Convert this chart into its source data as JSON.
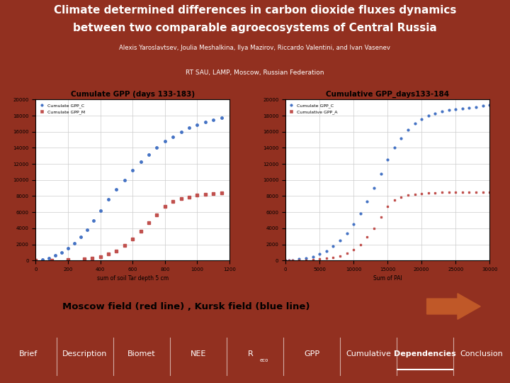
{
  "title_line1": "Climate determined differences in carbon dioxide fluxes dynamics",
  "title_line2": "between two comparable agroecosystems of Central Russia",
  "authors": "Alexis Yaroslavtsev, Joulia Meshalkina, Ilya Mazirov, Riccardo Valentini, and Ivan Vasenev",
  "affiliation": "RT SAU, LAMP, Moscow, Russian Federation",
  "header_bg": "#923020",
  "affil_bg": "#B84830",
  "body_bg": "#FFFFFF",
  "footer_bg": "#923020",
  "nav_items": [
    "Brief",
    "Description",
    "Biomet",
    "NEE",
    "R_eco",
    "GPP",
    "Cumulative",
    "Dependencies",
    "Conclusion"
  ],
  "active_nav": "Dependencies",
  "plot1_title": "Cumulate GPP (days 133-183)",
  "plot1_xlabel": "sum of soil Tar depth 5 cm",
  "plot1_legend1": "Cumulate GPP_C",
  "plot1_legend2": "Cumulate GPP_M",
  "plot2_title": "Cumulative GPP_days133-184",
  "plot2_xlabel": "Sum of PAI",
  "plot2_legend1": "Cumulate GPP_C",
  "plot2_legend2": "Cumulative GPP_A",
  "caption": "Moscow field (red line) , Kursk field (blue line)",
  "blue_color": "#4472C4",
  "red_color": "#C0504D",
  "plot1_blue_x": [
    0,
    40,
    80,
    120,
    160,
    200,
    240,
    280,
    320,
    360,
    400,
    450,
    500,
    550,
    600,
    650,
    700,
    750,
    800,
    850,
    900,
    950,
    1000,
    1050,
    1100,
    1150
  ],
  "plot1_blue_y": [
    0,
    100,
    300,
    600,
    1000,
    1500,
    2100,
    2900,
    3800,
    5000,
    6200,
    7600,
    8800,
    10000,
    11200,
    12300,
    13200,
    14000,
    14800,
    15400,
    16000,
    16500,
    16900,
    17200,
    17500,
    17700
  ],
  "plot1_red_x": [
    0,
    100,
    200,
    300,
    350,
    400,
    450,
    500,
    550,
    600,
    650,
    700,
    750,
    800,
    850,
    900,
    950,
    1000,
    1050,
    1100,
    1150
  ],
  "plot1_red_y": [
    0,
    50,
    100,
    200,
    300,
    500,
    800,
    1200,
    1900,
    2700,
    3600,
    4700,
    5700,
    6700,
    7300,
    7700,
    7900,
    8100,
    8250,
    8350,
    8400
  ],
  "plot2_blue_x": [
    0,
    500,
    1000,
    2000,
    3000,
    4000,
    5000,
    6000,
    7000,
    8000,
    9000,
    10000,
    11000,
    12000,
    13000,
    14000,
    15000,
    16000,
    17000,
    18000,
    19000,
    20000,
    21000,
    22000,
    23000,
    24000,
    25000,
    26000,
    27000,
    28000,
    29000,
    30000
  ],
  "plot2_blue_y": [
    0,
    20,
    50,
    150,
    280,
    500,
    800,
    1200,
    1800,
    2500,
    3400,
    4500,
    5800,
    7300,
    9000,
    10800,
    12500,
    14000,
    15200,
    16200,
    17000,
    17600,
    18000,
    18300,
    18500,
    18700,
    18800,
    18900,
    19000,
    19100,
    19200,
    19300
  ],
  "plot2_red_x": [
    0,
    500,
    1000,
    2000,
    3000,
    4000,
    5000,
    6000,
    7000,
    8000,
    9000,
    10000,
    11000,
    12000,
    13000,
    14000,
    15000,
    16000,
    17000,
    18000,
    19000,
    20000,
    21000,
    22000,
    23000,
    24000,
    25000,
    26000,
    27000,
    28000,
    29000,
    30000
  ],
  "plot2_red_y": [
    0,
    5,
    10,
    30,
    60,
    100,
    160,
    250,
    380,
    580,
    900,
    1350,
    2000,
    2900,
    4000,
    5400,
    6700,
    7500,
    7900,
    8100,
    8250,
    8350,
    8400,
    8430,
    8450,
    8460,
    8470,
    8475,
    8480,
    8483,
    8485,
    8488
  ],
  "plot1_yticks": [
    0,
    2000,
    4000,
    6000,
    8000,
    10000,
    12000,
    14000,
    16000,
    18000,
    20000
  ],
  "plot1_xticks": [
    0,
    200,
    400,
    600,
    800,
    1000,
    1200
  ],
  "plot2_yticks": [
    0,
    2000,
    4000,
    6000,
    8000,
    10000,
    12000,
    14000,
    16000,
    18000,
    20000
  ],
  "plot2_xticks": [
    0,
    5000,
    10000,
    15000,
    20000,
    25000,
    30000
  ],
  "arrow_color": "#C05828"
}
